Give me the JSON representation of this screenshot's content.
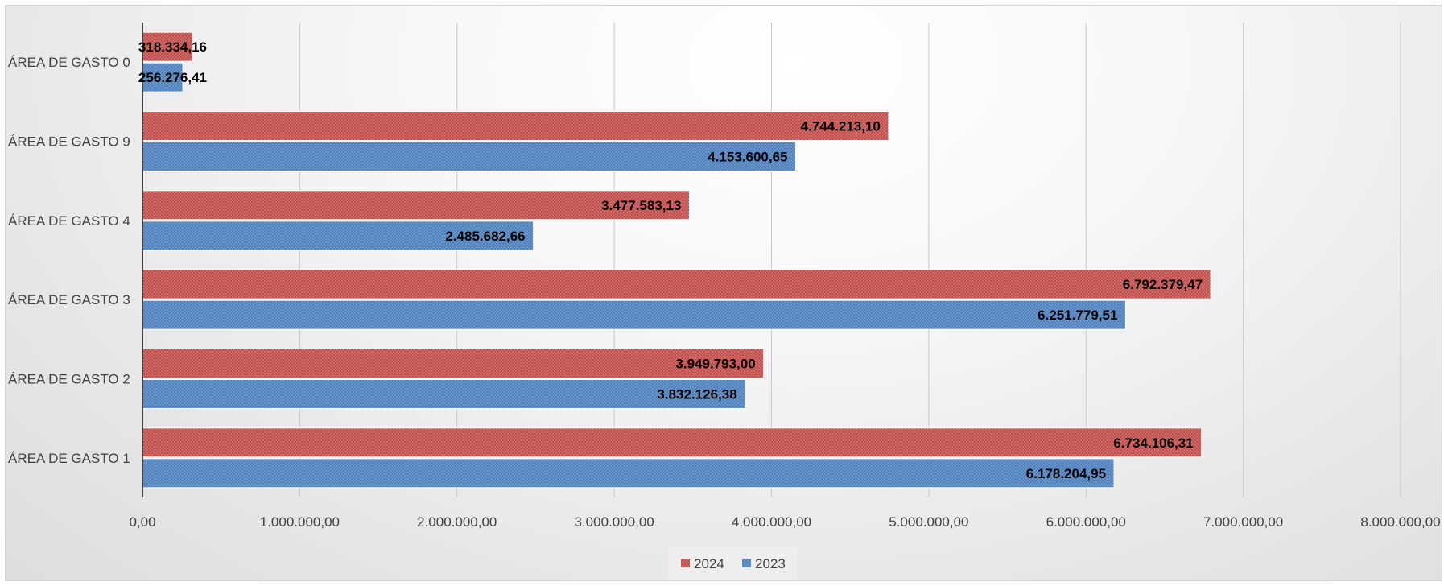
{
  "chart_data": {
    "type": "bar",
    "orientation": "horizontal",
    "categories": [
      "ÁREA DE GASTO 1",
      "ÁREA DE GASTO 2",
      "ÁREA DE GASTO 3",
      "ÁREA DE GASTO 4",
      "ÁREA DE GASTO 9",
      "ÁREA DE GASTO 0"
    ],
    "series": [
      {
        "name": "2024",
        "color": "#c0504d",
        "values": [
          6734106.31,
          3949793.0,
          6792379.47,
          3477583.13,
          4744213.1,
          318334.16
        ],
        "labels": [
          "6.734.106,31",
          "3.949.793,00",
          "6.792.379,47",
          "3.477.583,13",
          "4.744.213,10",
          "318.334,16"
        ]
      },
      {
        "name": "2023",
        "color": "#4f81bd",
        "values": [
          6178204.95,
          3832126.38,
          6251779.51,
          2485682.66,
          4153600.65,
          256276.41
        ],
        "labels": [
          "6.178.204,95",
          "3.832.126,38",
          "6.251.779,51",
          "2.485.682,66",
          "4.153.600,65",
          "256.276,41"
        ]
      }
    ],
    "xlim": [
      0,
      8000000
    ],
    "x_ticks": [
      0,
      1000000,
      2000000,
      3000000,
      4000000,
      5000000,
      6000000,
      7000000,
      8000000
    ],
    "x_tick_labels": [
      "0,00",
      "1.000.000,00",
      "2.000.000,00",
      "3.000.000,00",
      "4.000.000,00",
      "5.000.000,00",
      "6.000.000,00",
      "7.000.000,00",
      "8.000.000,00"
    ],
    "grid": "vertical",
    "legend_position": "bottom",
    "legend": [
      "2024",
      "2023"
    ]
  }
}
